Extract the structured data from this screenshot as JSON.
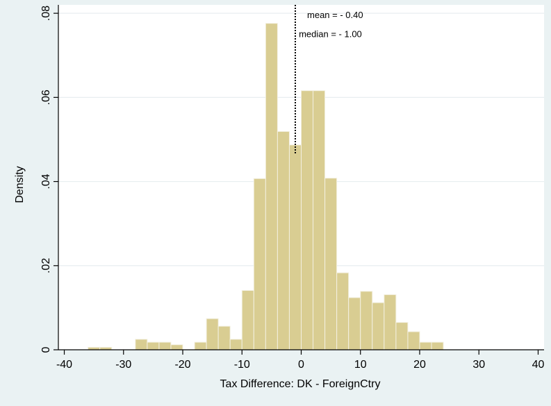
{
  "chart_data": {
    "type": "bar",
    "subtype": "histogram",
    "title": "",
    "xlabel": "Tax Difference: DK - ForeignCtry",
    "ylabel": "Density",
    "xlim": [
      -41,
      41
    ],
    "ylim": [
      0,
      0.082
    ],
    "x_ticks": [
      -40,
      -30,
      -20,
      -10,
      0,
      10,
      20,
      30,
      40
    ],
    "x_tick_labels": [
      "-40",
      "-30",
      "-20",
      "-10",
      "0",
      "10",
      "20",
      "30",
      "40"
    ],
    "y_ticks": [
      0,
      0.02,
      0.04,
      0.06,
      0.08
    ],
    "y_tick_labels": [
      "0",
      ".02",
      ".04",
      ".06",
      ".08"
    ],
    "grid": "horizontal",
    "bin_width": 2,
    "bins": [
      {
        "x0": -36,
        "x1": -34,
        "density": 0.0006
      },
      {
        "x0": -34,
        "x1": -32,
        "density": 0.0006
      },
      {
        "x0": -28,
        "x1": -26,
        "density": 0.0025
      },
      {
        "x0": -26,
        "x1": -24,
        "density": 0.0018
      },
      {
        "x0": -24,
        "x1": -22,
        "density": 0.0018
      },
      {
        "x0": -22,
        "x1": -20,
        "density": 0.0012
      },
      {
        "x0": -18,
        "x1": -16,
        "density": 0.0018
      },
      {
        "x0": -16,
        "x1": -14,
        "density": 0.0074
      },
      {
        "x0": -14,
        "x1": -12,
        "density": 0.0056
      },
      {
        "x0": -12,
        "x1": -10,
        "density": 0.0025
      },
      {
        "x0": -10,
        "x1": -8,
        "density": 0.0141
      },
      {
        "x0": -8,
        "x1": -6,
        "density": 0.0407
      },
      {
        "x0": -6,
        "x1": -4,
        "density": 0.0776
      },
      {
        "x0": -4,
        "x1": -2,
        "density": 0.0519
      },
      {
        "x0": -2,
        "x1": 0,
        "density": 0.0487
      },
      {
        "x0": 0,
        "x1": 2,
        "density": 0.0616
      },
      {
        "x0": 2,
        "x1": 4,
        "density": 0.0616
      },
      {
        "x0": 4,
        "x1": 6,
        "density": 0.0408
      },
      {
        "x0": 6,
        "x1": 8,
        "density": 0.0183
      },
      {
        "x0": 8,
        "x1": 10,
        "density": 0.0124
      },
      {
        "x0": 10,
        "x1": 12,
        "density": 0.0139
      },
      {
        "x0": 12,
        "x1": 14,
        "density": 0.0112
      },
      {
        "x0": 14,
        "x1": 16,
        "density": 0.0131
      },
      {
        "x0": 16,
        "x1": 18,
        "density": 0.0065
      },
      {
        "x0": 18,
        "x1": 20,
        "density": 0.0043
      },
      {
        "x0": 20,
        "x1": 22,
        "density": 0.0018
      },
      {
        "x0": 22,
        "x1": 24,
        "density": 0.0018
      }
    ],
    "reference_line": {
      "x": -1.0,
      "style": "dotted"
    },
    "annotations": [
      {
        "text": "mean = - 0.40",
        "x": 1,
        "y": 0.0795
      },
      {
        "text": "median = - 1.00",
        "x": -0.4,
        "y": 0.075
      }
    ],
    "colors": {
      "bar_fill": "#d9cd92",
      "bar_stroke": "#f3f0e1",
      "background": "#eaf2f3",
      "plot_background": "#ffffff",
      "grid": "#e8eef0",
      "axis": "#000000"
    }
  }
}
